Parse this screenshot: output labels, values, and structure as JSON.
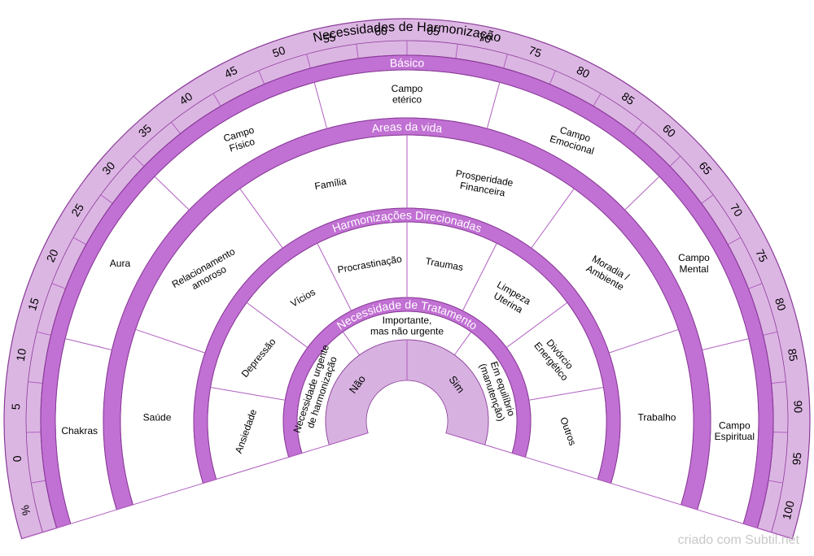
{
  "colors": {
    "band": "#c170d3",
    "band_stroke": "#8a3b99",
    "scale_fill": "#dcb6e3",
    "inner_fill": "#d7b2e0",
    "line": "#b060c0",
    "text": "#000000",
    "band_text": "#ffffff"
  },
  "scale": {
    "title": "Necessidades de Harmonização",
    "ticks": [
      "%",
      "0",
      "5",
      "10",
      "15",
      "20",
      "25",
      "30",
      "35",
      "40",
      "45",
      "50",
      "55",
      "60",
      "65",
      "70",
      "75",
      "80",
      "85",
      "60",
      "65",
      "70",
      "75",
      "80",
      "85",
      "90",
      "95",
      "100"
    ]
  },
  "rings": [
    {
      "band_label": "Básico",
      "items": [
        "Chakras",
        "Aura",
        "Campo\nFísico",
        "Campo\netérico",
        "Campo\nEmocional",
        "Campo\nMental",
        "Campo\nEspiritual"
      ]
    },
    {
      "band_label": "Areas da vida",
      "items": [
        "Saúde",
        "Relacionamento\namoroso",
        "Família",
        "Prosperidade\nFinanceira",
        "Moradia /\nAmbiente",
        "Trabalho"
      ]
    },
    {
      "band_label": "Harmonizações Direcionadas",
      "items": [
        "Ansiedade",
        "Depressão",
        "Vícios",
        "Procrastinação",
        "Traumas",
        "Limpeza\nUterina",
        "Divórcio\nEnergético",
        "Outros"
      ]
    },
    {
      "band_label": "Necessidade de Tratamento",
      "items": [
        "Necessidade urgente\nde harmonização",
        "Importante,\nmas não urgente",
        "Em equilíbrio\n(manutenção)"
      ]
    }
  ],
  "center": {
    "items": [
      "Não",
      "Sim"
    ]
  },
  "footer": {
    "credit": "criado com Subtil.net"
  }
}
